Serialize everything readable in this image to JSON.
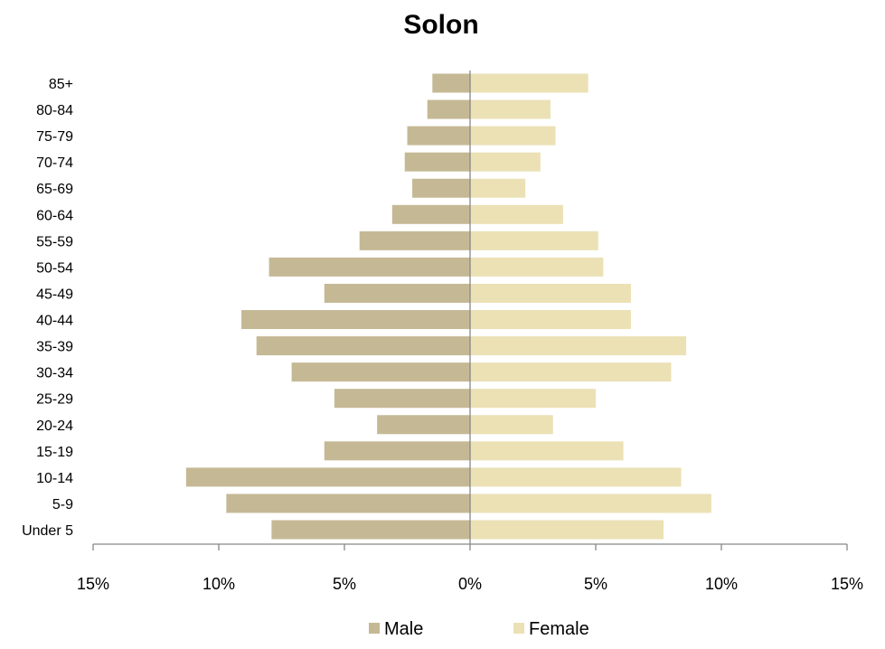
{
  "chart_data": {
    "type": "bar",
    "orientation": "horizontal",
    "title": "Solon",
    "xlabel": "",
    "ylabel": "",
    "categories": [
      "Under 5",
      "5-9",
      "10-14",
      "15-19",
      "20-24",
      "25-29",
      "30-34",
      "35-39",
      "40-44",
      "45-49",
      "50-54",
      "55-59",
      "60-64",
      "65-69",
      "70-74",
      "75-79",
      "80-84",
      "85+"
    ],
    "series": [
      {
        "name": "Male",
        "color": "#c5b995",
        "values": [
          7.9,
          9.7,
          11.3,
          5.8,
          3.7,
          5.4,
          7.1,
          8.5,
          9.1,
          5.8,
          8.0,
          4.4,
          3.1,
          2.3,
          2.6,
          2.5,
          1.7,
          1.5
        ]
      },
      {
        "name": "Female",
        "color": "#ebe1b5",
        "values": [
          7.7,
          9.6,
          8.4,
          6.1,
          3.3,
          5.0,
          8.0,
          8.6,
          6.4,
          6.4,
          5.3,
          5.1,
          3.7,
          2.2,
          2.8,
          3.4,
          3.2,
          4.7
        ]
      }
    ],
    "xlim": [
      -15,
      15
    ],
    "xticks": [
      -15,
      -10,
      -5,
      0,
      5,
      10,
      15
    ],
    "xtick_labels": [
      "15%",
      "10%",
      "5%",
      "0%",
      "5%",
      "10%",
      "15%"
    ],
    "legend_position": "bottom",
    "grid": false
  }
}
